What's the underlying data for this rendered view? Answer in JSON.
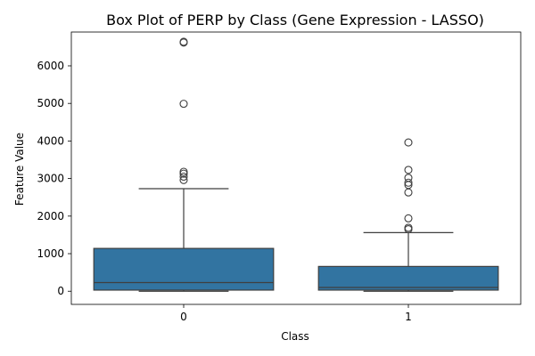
{
  "chart_data": {
    "type": "box",
    "title": "Box Plot of PERP by Class (Gene Expression - LASSO)",
    "xlabel": "Class",
    "ylabel": "Feature Value",
    "categories": [
      "0",
      "1"
    ],
    "ylim": [
      -350,
      6900
    ],
    "yticks": [
      0,
      1000,
      2000,
      3000,
      4000,
      5000,
      6000
    ],
    "grid": false,
    "box_color": "#3274a1",
    "line_color": "#3f3f3f",
    "boxes": [
      {
        "category": "0",
        "whisker_low": 0,
        "q1": 30,
        "median": 230,
        "q3": 1140,
        "whisker_high": 2730,
        "outliers": [
          2960,
          3050,
          3130,
          3180,
          4990,
          6620,
          6640
        ]
      },
      {
        "category": "1",
        "whisker_low": 0,
        "q1": 30,
        "median": 100,
        "q3": 660,
        "whisker_high": 1560,
        "outliers": [
          1650,
          1690,
          1940,
          2630,
          2830,
          2890,
          3020,
          3230,
          3960
        ]
      }
    ]
  }
}
